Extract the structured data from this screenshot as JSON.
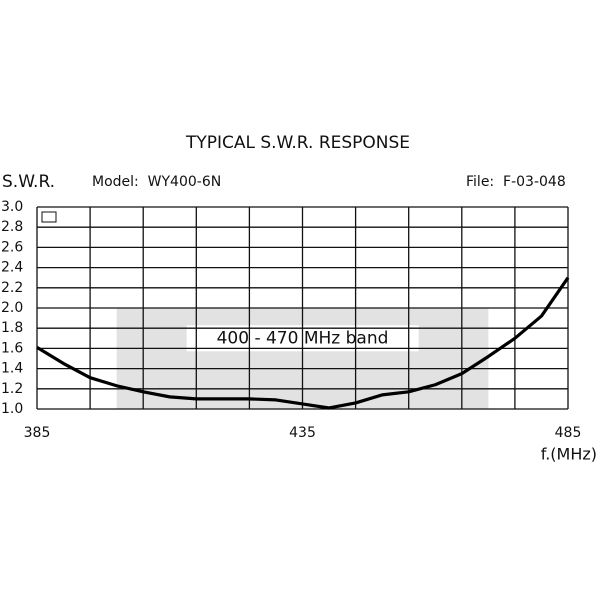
{
  "chart_data": {
    "type": "line",
    "title": "TYPICAL S.W.R. RESPONSE",
    "ylabel": "S.W.R.",
    "xlabel": "f.(MHz)",
    "model": "Model:  WY400-6N",
    "file": "File:  F-03-048",
    "x": [
      385,
      390,
      395,
      400,
      405,
      410,
      415,
      420,
      425,
      430,
      435,
      440,
      445,
      450,
      455,
      460,
      465,
      470,
      475,
      480,
      485
    ],
    "series": [
      {
        "color": "#000000",
        "values": [
          1.61,
          1.45,
          1.31,
          1.23,
          1.17,
          1.12,
          1.1,
          1.1,
          1.1,
          1.09,
          1.05,
          1.01,
          1.06,
          1.14,
          1.17,
          1.24,
          1.35,
          1.52,
          1.7,
          1.92,
          2.3
        ]
      }
    ],
    "band": {
      "label": "400 - 470 MHz band",
      "x": [
        400,
        470
      ],
      "y": [
        1.0,
        2.0
      ],
      "color": "#e2e2e2"
    },
    "xlim": [
      385,
      485
    ],
    "xticks": [
      385,
      435,
      485
    ],
    "xgrid": [
      385,
      395,
      405,
      415,
      425,
      435,
      445,
      455,
      465,
      475,
      485
    ],
    "ylim": [
      1.0,
      3.0
    ],
    "yticks": [
      {
        "value": 1.0,
        "label": "1.0"
      },
      {
        "value": 1.2,
        "label": "1.2"
      },
      {
        "value": 1.4,
        "label": "1.4"
      },
      {
        "value": 1.6,
        "label": "1.6"
      },
      {
        "value": 1.8,
        "label": "1.8"
      },
      {
        "value": 2.0,
        "label": "2.0"
      },
      {
        "value": 2.2,
        "label": "2.2"
      },
      {
        "value": 2.4,
        "label": "2.4"
      },
      {
        "value": 2.6,
        "label": "2.6"
      },
      {
        "value": 2.8,
        "label": "2.8"
      },
      {
        "value": 3.0,
        "label": "3.0"
      }
    ],
    "grid": true
  }
}
